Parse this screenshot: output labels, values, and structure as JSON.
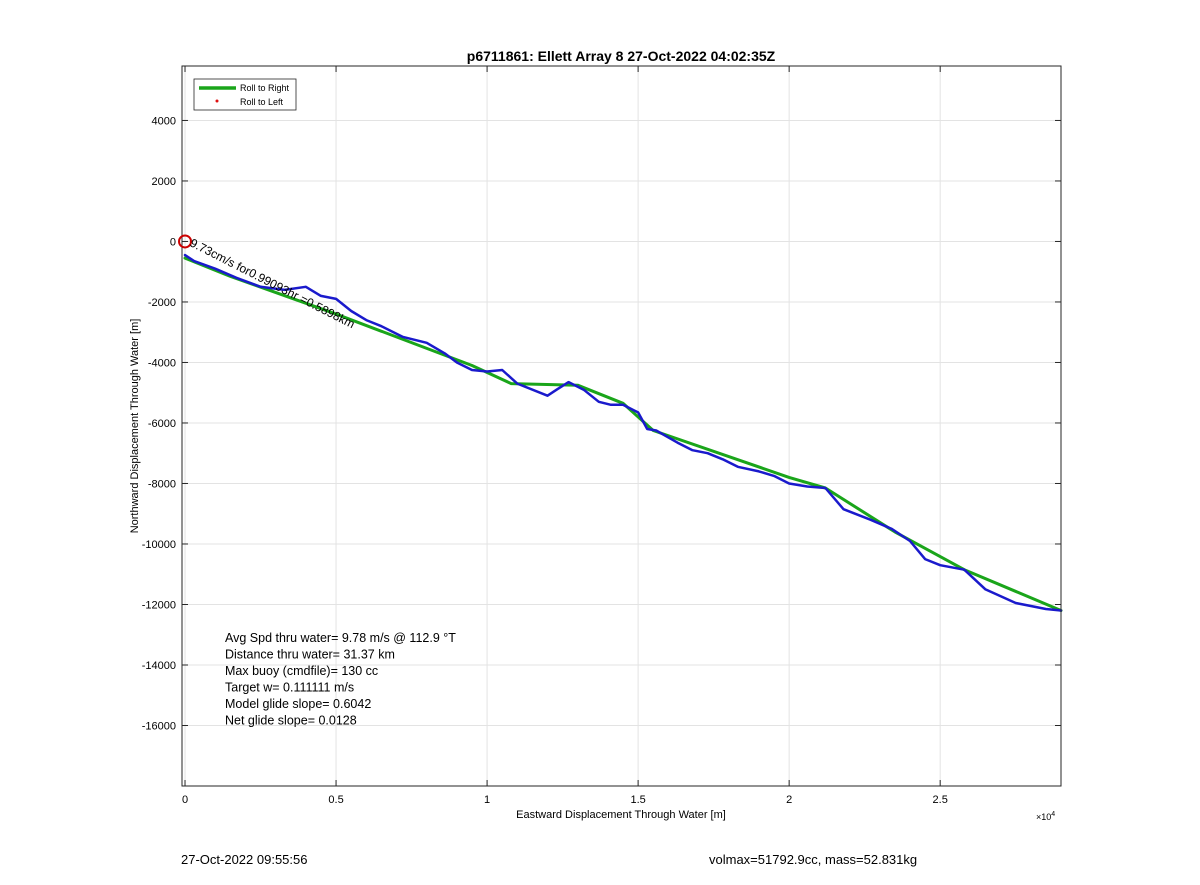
{
  "chart_data": {
    "type": "line",
    "title": "p6711861: Ellett Array 8 27-Oct-2022 04:02:35Z",
    "xlabel": "Eastward Displacement Through Water [m]",
    "ylabel": "Northward Displacement Through Water [m]",
    "x_exponent_label": "×10^4",
    "xlim": [
      -100,
      29000
    ],
    "ylim": [
      -18000,
      5800
    ],
    "x_ticks": [
      0,
      5000,
      10000,
      15000,
      20000,
      25000
    ],
    "x_tick_labels": [
      "0",
      "0.5",
      "1",
      "1.5",
      "2",
      "2.5"
    ],
    "y_ticks": [
      4000,
      2000,
      0,
      -2000,
      -4000,
      -6000,
      -8000,
      -10000,
      -12000,
      -14000,
      -16000
    ],
    "y_tick_labels": [
      "4000",
      "2000",
      "0",
      "-2000",
      "-4000",
      "-6000",
      "-8000",
      "-10000",
      "-12000",
      "-14000",
      "-16000"
    ],
    "grid": true,
    "legend_position": "top-left",
    "series": [
      {
        "name": "Roll to Right",
        "color": "#1aa51a",
        "x": [
          0,
          1500,
          5000,
          9500,
          10800,
          13000,
          14500,
          15500,
          20000,
          21200,
          23500,
          25800,
          29000
        ],
        "y": [
          -550,
          -1150,
          -2400,
          -4100,
          -4700,
          -4750,
          -5350,
          -6250,
          -7800,
          -8150,
          -9600,
          -10850,
          -12200
        ]
      },
      {
        "name": "Roll to Left",
        "color": "#e01010",
        "x": [],
        "y": []
      },
      {
        "name": "",
        "color": "#1a1acc",
        "x": [
          0,
          300,
          1000,
          1700,
          2500,
          3300,
          4000,
          4500,
          5000,
          5500,
          6000,
          6500,
          7200,
          8000,
          8600,
          9000,
          9500,
          10000,
          10500,
          11000,
          12000,
          12300,
          12700,
          13200,
          13700,
          14100,
          14500,
          15000,
          15300,
          15600,
          16300,
          16800,
          17300,
          17800,
          18300,
          19000,
          19500,
          20000,
          20600,
          21200,
          21800,
          22700,
          23400,
          24000,
          24500,
          25000,
          25800,
          26500,
          27500,
          28500,
          29000
        ],
        "y": [
          -450,
          -650,
          -900,
          -1200,
          -1500,
          -1600,
          -1500,
          -1800,
          -1900,
          -2300,
          -2600,
          -2800,
          -3150,
          -3350,
          -3700,
          -4000,
          -4250,
          -4300,
          -4250,
          -4700,
          -5100,
          -4900,
          -4650,
          -4900,
          -5300,
          -5400,
          -5400,
          -5650,
          -6200,
          -6250,
          -6650,
          -6900,
          -7000,
          -7200,
          -7450,
          -7600,
          -7750,
          -8000,
          -8100,
          -8150,
          -8850,
          -9200,
          -9500,
          -9900,
          -10500,
          -10700,
          -10850,
          -11500,
          -11950,
          -12150,
          -12200
        ]
      }
    ],
    "annotations": {
      "track_label": "9.73cm/s for0.99093hr =0.5898km",
      "stats": [
        "Avg Spd thru water=  9.78 m/s @ 112.9 °T",
        "Distance thru water= 31.37 km",
        "Max buoy (cmdfile)= 130 cc",
        "Target w= 0.111111 m/s",
        "Model glide slope= 0.6042",
        "Net glide slope= 0.0128"
      ]
    }
  },
  "footer": {
    "date": "27-Oct-2022 09:55:56",
    "info": "volmax=51792.9cc, mass=52.831kg"
  }
}
